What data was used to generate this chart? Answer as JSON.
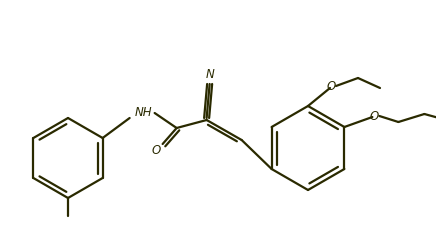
{
  "background_color": "#ffffff",
  "line_color": "#2a2a00",
  "line_width": 1.6,
  "figsize": [
    4.36,
    2.29
  ],
  "dpi": 100,
  "NH_label": "NH",
  "O_label": "O",
  "N_label": "N"
}
